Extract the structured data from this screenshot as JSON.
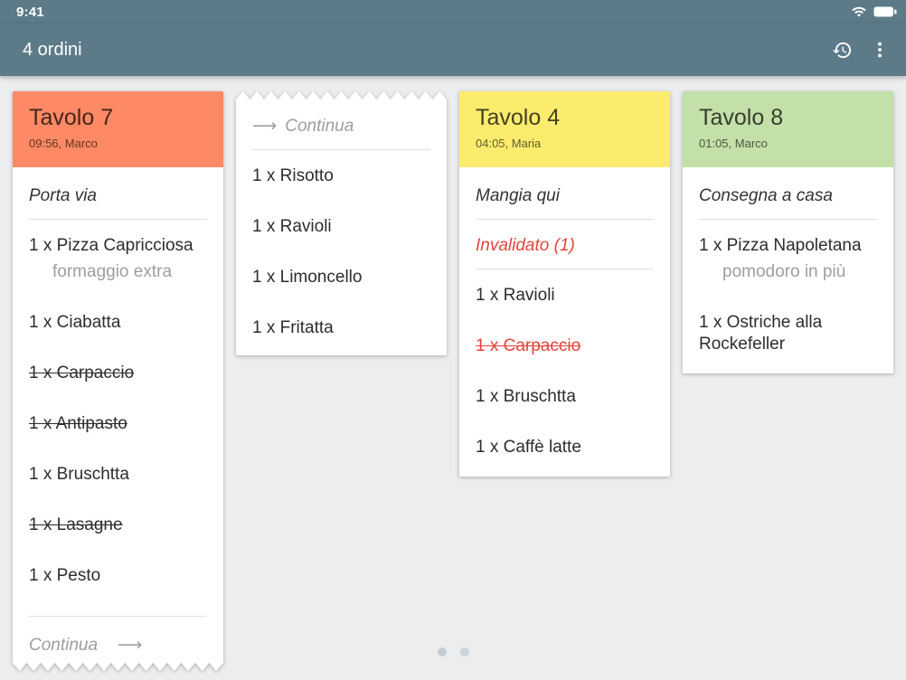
{
  "theme": {
    "app_bar_color": "#5d7a89",
    "background_color": "#ecedee",
    "card_color": "#ffffff",
    "divider_color": "#e0e0e0",
    "muted_text_color": "#9e9e9e",
    "error_color": "#e2453b",
    "page_dot_color": "#c3cdd5"
  },
  "status_bar": {
    "time": "9:41",
    "icons": [
      "wifi-icon",
      "battery-icon"
    ]
  },
  "app_bar": {
    "title": "4 ordini",
    "actions": [
      {
        "name": "history-button",
        "icon": "history-icon"
      },
      {
        "name": "overflow-menu-button",
        "icon": "vertical-dots-icon"
      }
    ]
  },
  "cards": [
    {
      "kind": "order",
      "title": "Tavolo 7",
      "subtitle": "09:56, Marco",
      "header_color": "#fd8a64",
      "order_type": "Porta via",
      "items": [
        {
          "text": "1 x Pizza Capricciosa",
          "note": "formaggio extra"
        },
        {
          "text": "1 x Ciabatta"
        },
        {
          "text": "1 x Carpaccio",
          "struck": true
        },
        {
          "text": "1 x Antipasto",
          "struck": true
        },
        {
          "text": "1 x Bruschtta"
        },
        {
          "text": "1 x Lasagne",
          "struck": true
        },
        {
          "text": "1 x Pesto"
        }
      ],
      "footer": {
        "label": "Continua",
        "arrow": "⟶"
      },
      "torn_bottom": true
    },
    {
      "kind": "continuation",
      "continued": {
        "arrow": "⟶",
        "label": "Continua"
      },
      "items": [
        {
          "text": "1 x Risotto"
        },
        {
          "text": "1 x Ravioli"
        },
        {
          "text": "1 x Limoncello"
        },
        {
          "text": "1 x Fritatta"
        }
      ],
      "torn_top": true
    },
    {
      "kind": "order",
      "title": "Tavolo 4",
      "subtitle": "04:05, Maria",
      "header_color": "#fcec6e",
      "order_type": "Mangia qui",
      "invalidated_label": "Invalidato (1)",
      "items": [
        {
          "text": "1 x Ravioli"
        },
        {
          "text": "1 x Carpaccio",
          "struck": true,
          "invalid": true
        },
        {
          "text": "1 x Bruschtta"
        },
        {
          "text": "1 x Caffè latte"
        }
      ]
    },
    {
      "kind": "order",
      "title": "Tavolo 8",
      "subtitle": "01:05, Marco",
      "header_color": "#c3e0a8",
      "order_type": "Consegna a casa",
      "items": [
        {
          "text": "1 x Pizza Napoletana",
          "note": "pomodoro in più"
        },
        {
          "text": "1 x Ostriche alla Rockefeller"
        }
      ]
    }
  ],
  "page_indicator": {
    "dot_count": 2,
    "active_dot": 1
  }
}
